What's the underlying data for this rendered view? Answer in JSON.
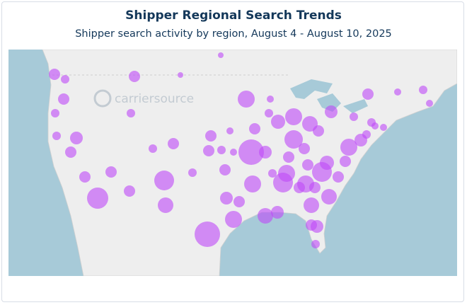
{
  "header": {
    "title": "Shipper Regional Search Trends",
    "subtitle": "Shipper search activity by region, August 4 - August 10, 2025"
  },
  "map": {
    "logo": "carriersource"
  }
}
